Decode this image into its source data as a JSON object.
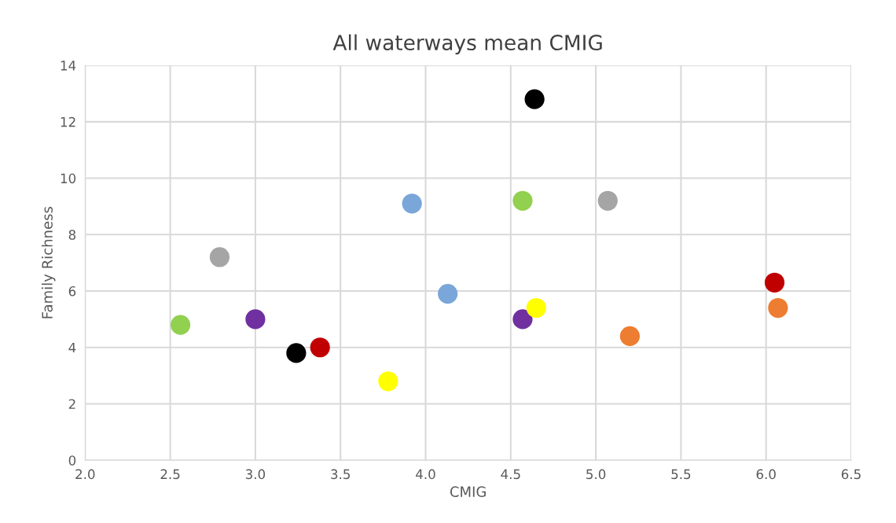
{
  "chart_data": {
    "type": "scatter",
    "title": "All waterways mean CMIG",
    "xlabel": "CMIG",
    "ylabel": "Family Richness",
    "xlim": [
      2.0,
      6.5
    ],
    "xticks": [
      {
        "value": 2.0,
        "label": "2.0"
      },
      {
        "value": 2.5,
        "label": "2.5"
      },
      {
        "value": 3.0,
        "label": "3.0"
      },
      {
        "value": 3.5,
        "label": "3.5"
      },
      {
        "value": 4.0,
        "label": "4.0"
      },
      {
        "value": 4.5,
        "label": "4.5"
      },
      {
        "value": 5.0,
        "label": "5.0"
      },
      {
        "value": 5.5,
        "label": "5.5"
      },
      {
        "value": 6.0,
        "label": "6.0"
      },
      {
        "value": 6.5,
        "label": "6.5"
      }
    ],
    "ylim": [
      0,
      14
    ],
    "yticks": [
      0,
      2,
      4,
      6,
      8,
      10,
      12,
      14
    ],
    "grid": true,
    "marker": "circle",
    "series": [
      {
        "color": "#a5a5a5",
        "x": [
          2.79,
          5.07
        ],
        "values": [
          7.2,
          9.2
        ]
      },
      {
        "color": "#92d050",
        "x": [
          2.56,
          4.57
        ],
        "values": [
          4.8,
          9.2
        ]
      },
      {
        "color": "#7030a0",
        "x": [
          3.0,
          4.57
        ],
        "values": [
          5.0,
          5.0
        ]
      },
      {
        "color": "#000000",
        "x": [
          3.24,
          4.64
        ],
        "values": [
          3.8,
          12.8
        ]
      },
      {
        "color": "#c00000",
        "x": [
          3.38,
          6.05
        ],
        "values": [
          4.0,
          6.3
        ]
      },
      {
        "color": "#ffff00",
        "x": [
          3.78,
          4.65
        ],
        "values": [
          2.8,
          5.4
        ]
      },
      {
        "color": "#7aa6d9",
        "x": [
          3.92,
          4.13
        ],
        "values": [
          9.1,
          5.9
        ]
      },
      {
        "color": "#ed7d31",
        "x": [
          5.2,
          6.07
        ],
        "values": [
          4.4,
          5.4
        ]
      }
    ]
  }
}
